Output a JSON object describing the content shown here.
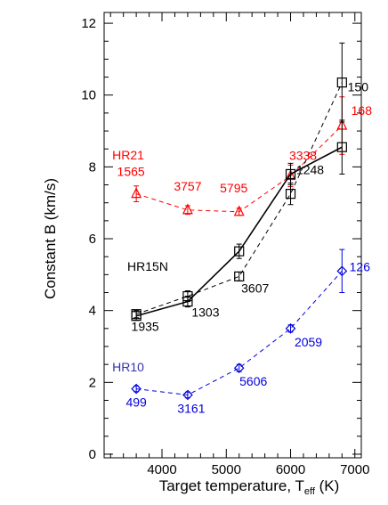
{
  "chart_data": {
    "type": "line",
    "xlabel": "Target temperature, T",
    "xlabel_sub": "eff",
    "xlabel_unit": " (K)",
    "ylabel": "Constant B (km/s)",
    "xlim": [
      3100,
      7100
    ],
    "ylim": [
      -0.1,
      12.3
    ],
    "xticks": [
      4000,
      5000,
      6000,
      7000
    ],
    "yticks": [
      0,
      2,
      4,
      6,
      8,
      10,
      12
    ],
    "xminor_step": 200,
    "yminor_step": 0.5,
    "grid": false,
    "series": [
      {
        "name": "HR21",
        "color": "#ff0000",
        "marker": "triangle",
        "line": "dashed",
        "x": [
          3600,
          4400,
          5200,
          6000,
          6800
        ],
        "y": [
          7.25,
          6.8,
          6.75,
          7.75,
          9.15
        ],
        "err": [
          0.22,
          0.12,
          0.1,
          0.3,
          0.8
        ],
        "labels": [
          "1565",
          "3757",
          "5795",
          "3338",
          "168"
        ]
      },
      {
        "name": "",
        "color": "#000000",
        "marker": "square",
        "line": "dashed",
        "x": [
          3600,
          4400,
          5200,
          6000,
          6800
        ],
        "y": [
          3.9,
          4.4,
          4.95,
          7.25,
          10.35
        ],
        "err": [
          0.1,
          0.15,
          0.12,
          0.3,
          1.1
        ],
        "labels": [
          "",
          "",
          "3607",
          "1248",
          "150"
        ]
      },
      {
        "name": "HR15N",
        "color": "#000000",
        "marker": "square",
        "line": "solid",
        "x": [
          3600,
          4400,
          5200,
          6000,
          6800
        ],
        "y": [
          3.85,
          4.25,
          5.65,
          7.8,
          8.55
        ],
        "err": [
          0.12,
          0.15,
          0.2,
          0.3,
          0.75
        ],
        "labels": [
          "1935",
          "1303",
          "",
          "",
          ""
        ]
      },
      {
        "name": "HR10",
        "color": "#0000dd",
        "marker": "diamond",
        "line": "dashed",
        "x": [
          3600,
          4400,
          5200,
          6000,
          6800
        ],
        "y": [
          1.82,
          1.65,
          2.4,
          3.5,
          5.1
        ],
        "err": [
          0.08,
          0.08,
          0.1,
          0.1,
          0.6
        ],
        "labels": [
          "499",
          "3161",
          "5606",
          "2059",
          "126"
        ]
      }
    ]
  }
}
